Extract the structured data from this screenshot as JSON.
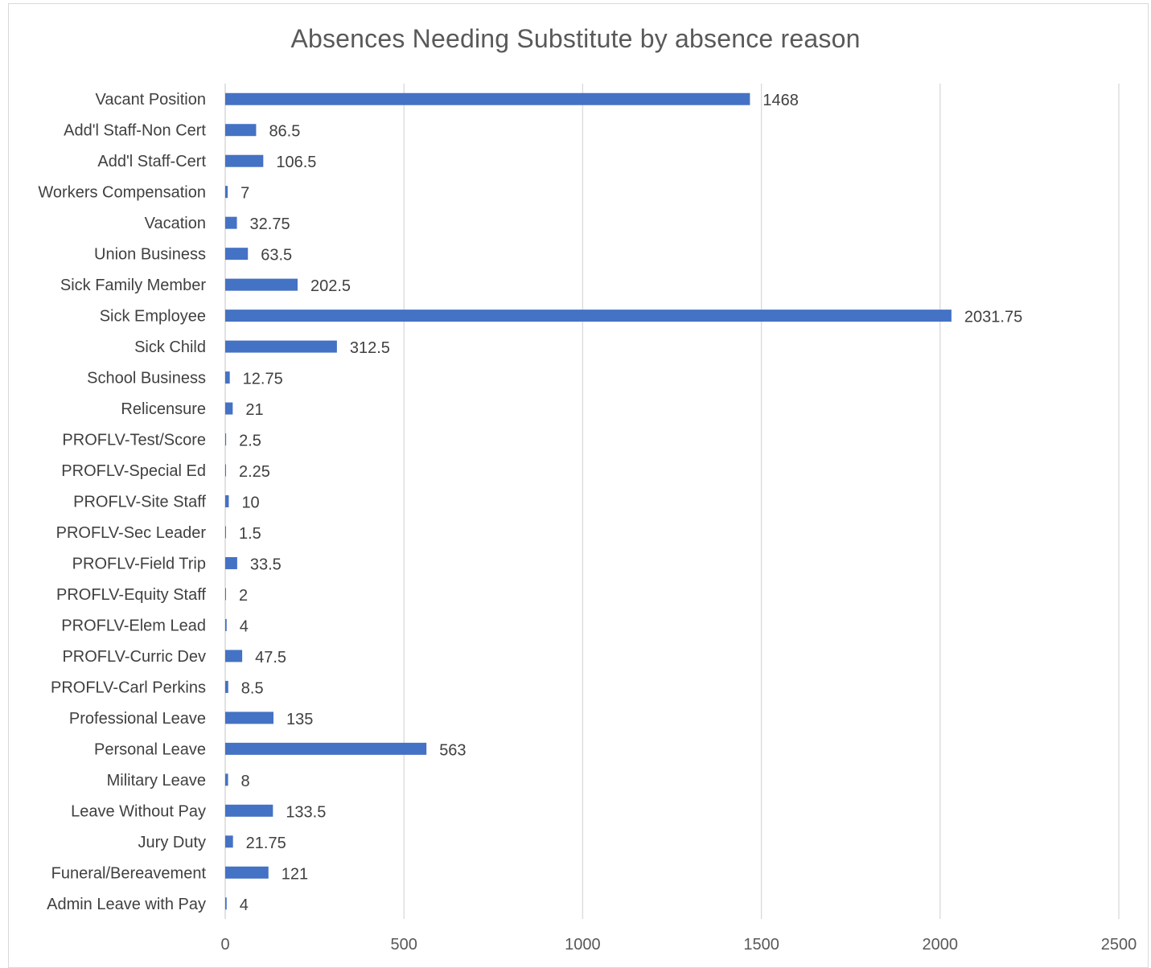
{
  "chart_data": {
    "type": "bar",
    "orientation": "horizontal",
    "title": "Absences Needing Substitute by absence reason",
    "xlabel": "",
    "ylabel": "",
    "xlim": [
      0,
      2500
    ],
    "x_ticks": [
      0,
      500,
      1000,
      1500,
      2000,
      2500
    ],
    "grid": "vertical gridlines",
    "legend": "none",
    "bar_color": "#4472c4",
    "categories": [
      "Vacant Position",
      "Add'l Staff-Non Cert",
      "Add'l Staff-Cert",
      "Workers Compensation",
      "Vacation",
      "Union Business",
      "Sick Family Member",
      "Sick Employee",
      "Sick Child",
      "School Business",
      "Relicensure",
      "PROFLV-Test/Score",
      "PROFLV-Special Ed",
      "PROFLV-Site Staff",
      "PROFLV-Sec Leader",
      "PROFLV-Field Trip",
      "PROFLV-Equity Staff",
      "PROFLV-Elem Lead",
      "PROFLV-Curric Dev",
      "PROFLV-Carl Perkins",
      "Professional Leave",
      "Personal Leave",
      "Military Leave",
      "Leave Without Pay",
      "Jury Duty",
      "Funeral/Bereavement",
      "Admin Leave with Pay"
    ],
    "values": [
      1468,
      86.5,
      106.5,
      7,
      32.75,
      63.5,
      202.5,
      2031.75,
      312.5,
      12.75,
      21,
      2.5,
      2.25,
      10,
      1.5,
      33.5,
      2,
      4,
      47.5,
      8.5,
      135,
      563,
      8,
      133.5,
      21.75,
      121,
      4
    ],
    "data_labels": [
      "1468",
      "86.5",
      "106.5",
      "7",
      "32.75",
      "63.5",
      "202.5",
      "2031.75",
      "312.5",
      "12.75",
      "21",
      "2.5",
      "2.25",
      "10",
      "1.5",
      "33.5",
      "2",
      "4",
      "47.5",
      "8.5",
      "135",
      "563",
      "8",
      "133.5",
      "21.75",
      "121",
      "4"
    ]
  }
}
